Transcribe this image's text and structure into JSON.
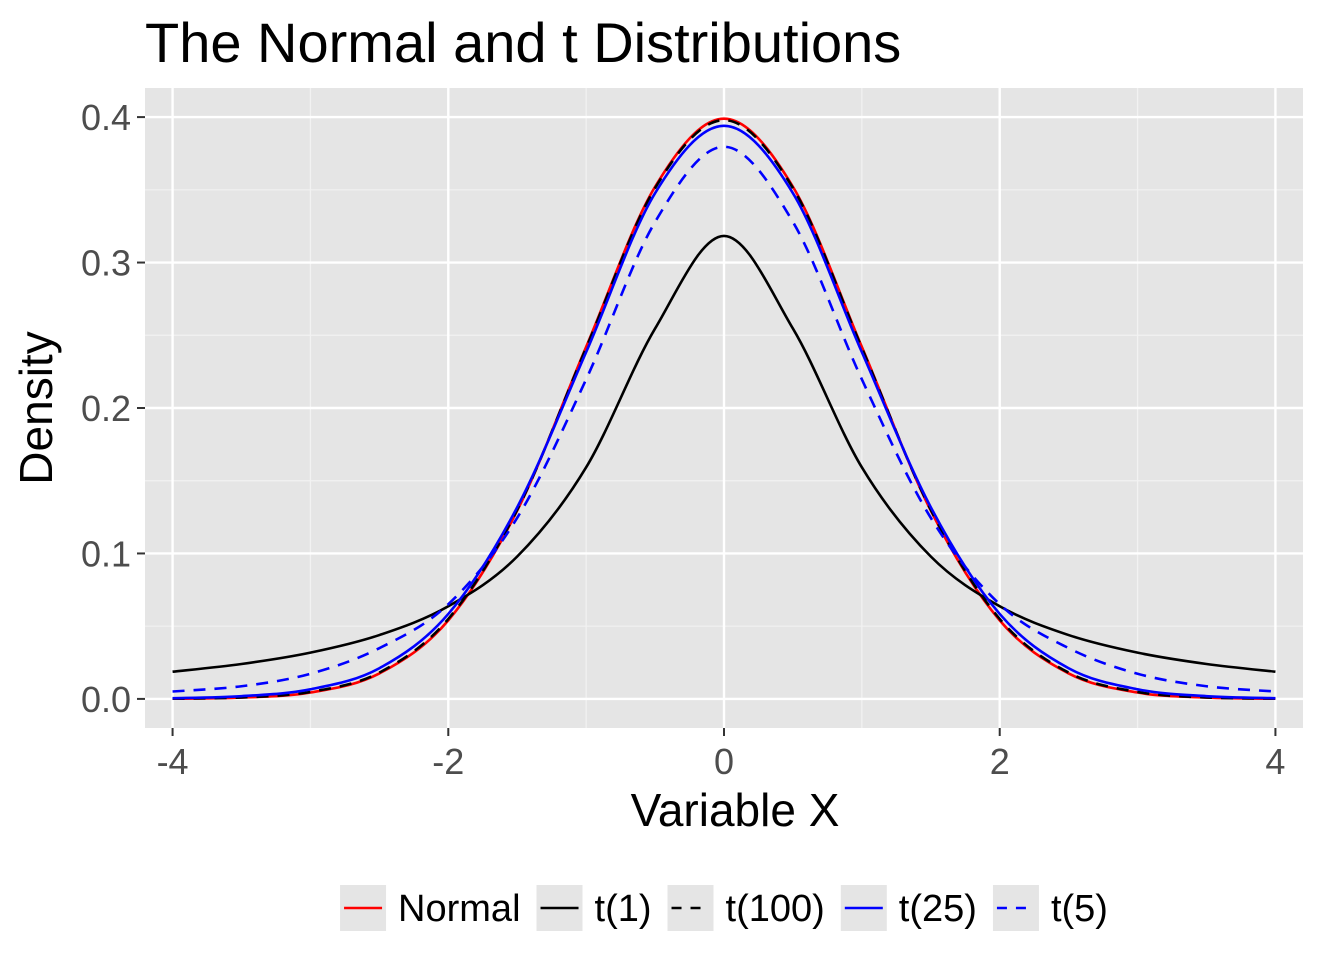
{
  "chart_data": {
    "type": "line",
    "title": "The Normal and t Distributions",
    "xlabel": "Variable X",
    "ylabel": "Density",
    "xlim": [
      -4.2,
      4.2
    ],
    "ylim": [
      -0.02,
      0.42
    ],
    "x_ticks": [
      -4,
      -2,
      0,
      2,
      4
    ],
    "x_tick_labels": [
      "-4",
      "-2",
      "0",
      "2",
      "4"
    ],
    "y_ticks": [
      0.0,
      0.1,
      0.2,
      0.3,
      0.4
    ],
    "y_tick_labels": [
      "0.0",
      "0.1",
      "0.2",
      "0.3",
      "0.4"
    ],
    "grid": true,
    "legend_position": "bottom",
    "x": [
      -4,
      -3.5,
      -3,
      -2.5,
      -2,
      -1.5,
      -1,
      -0.5,
      0,
      0.5,
      1,
      1.5,
      2,
      2.5,
      3,
      3.5,
      4
    ],
    "series": [
      {
        "name": "Normal",
        "color": "#ff0000",
        "dash": "solid",
        "values": [
          0.0001,
          0.0009,
          0.0044,
          0.0175,
          0.054,
          0.1295,
          0.242,
          0.3521,
          0.3989,
          0.3521,
          0.242,
          0.1295,
          0.054,
          0.0175,
          0.0044,
          0.0009,
          0.0001
        ]
      },
      {
        "name": "t(1)",
        "color": "#000000",
        "dash": "solid",
        "values": [
          0.0187,
          0.024,
          0.0318,
          0.0439,
          0.0637,
          0.0979,
          0.1592,
          0.2546,
          0.3183,
          0.2546,
          0.1592,
          0.0979,
          0.0637,
          0.0439,
          0.0318,
          0.024,
          0.0187
        ]
      },
      {
        "name": "t(100)",
        "color": "#000000",
        "dash": "dashed",
        "values": [
          0.0002,
          0.001,
          0.0048,
          0.0181,
          0.055,
          0.13,
          0.2413,
          0.3512,
          0.3979,
          0.3512,
          0.2413,
          0.13,
          0.055,
          0.0181,
          0.0048,
          0.001,
          0.0002
        ]
      },
      {
        "name": "t(25)",
        "color": "#0000ff",
        "dash": "solid",
        "values": [
          0.0005,
          0.0019,
          0.0066,
          0.0211,
          0.0584,
          0.1318,
          0.2384,
          0.3477,
          0.394,
          0.3477,
          0.2384,
          0.1318,
          0.0584,
          0.0211,
          0.0066,
          0.0019,
          0.0005
        ]
      },
      {
        "name": "t(5)",
        "color": "#0000ff",
        "dash": "dashed",
        "values": [
          0.0051,
          0.0087,
          0.0173,
          0.0349,
          0.0651,
          0.1245,
          0.2197,
          0.3279,
          0.3796,
          0.3279,
          0.2197,
          0.1245,
          0.0651,
          0.0349,
          0.0173,
          0.0087,
          0.0051
        ]
      }
    ]
  }
}
